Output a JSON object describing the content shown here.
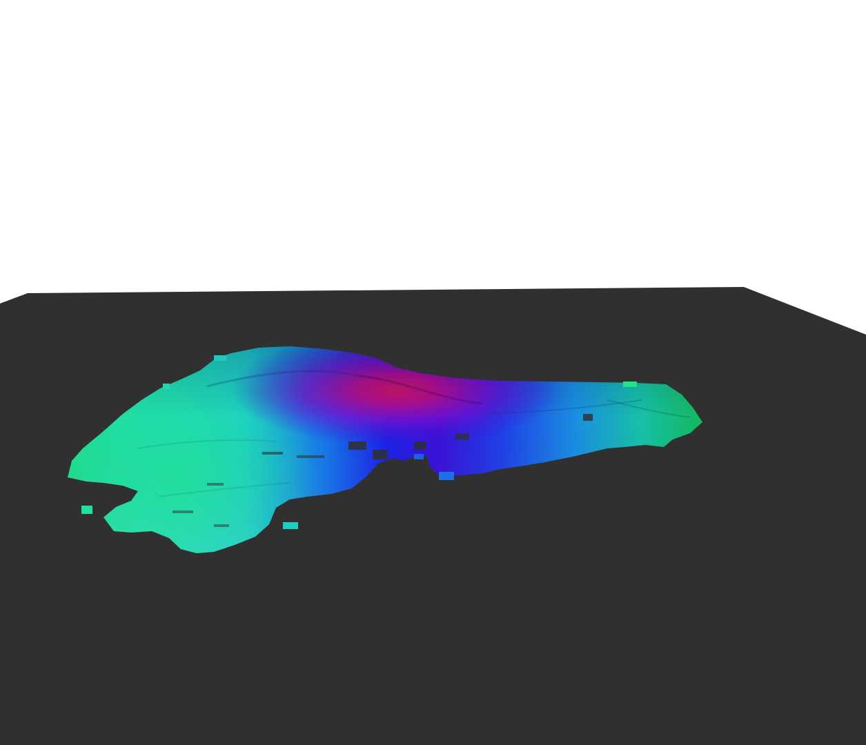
{
  "scene": {
    "background_color": "#ffffff",
    "ground_plane_color": "#303030",
    "surface_colormap": [
      "#00ff66",
      "#00ffcc",
      "#0099ff",
      "#0000ff",
      "#9900cc",
      "#cc0066"
    ],
    "icons": [
      "terrain-surface",
      "ground-plane"
    ]
  }
}
